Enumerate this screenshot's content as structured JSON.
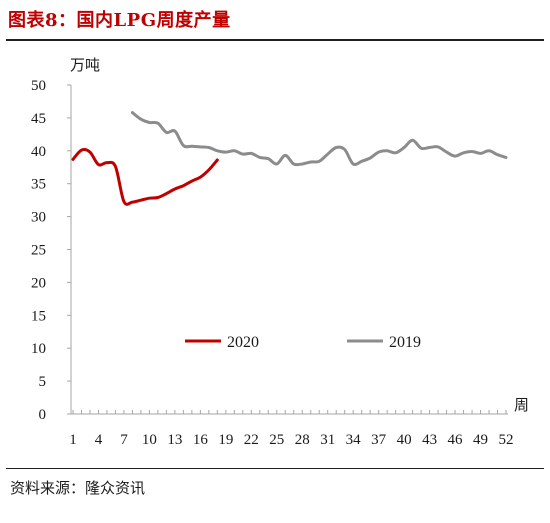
{
  "figure": {
    "title": "图表8：国内LPG周度产量",
    "source": "资料来源：隆众资讯"
  },
  "chart_data": {
    "type": "line",
    "ylabel": "万吨",
    "xlabel": "周",
    "ylim": [
      0,
      50
    ],
    "yticks": [
      0,
      5,
      10,
      15,
      20,
      25,
      30,
      35,
      40,
      45,
      50
    ],
    "xlim": [
      1,
      52
    ],
    "xticks": [
      1,
      4,
      7,
      10,
      13,
      16,
      19,
      22,
      25,
      28,
      31,
      34,
      37,
      40,
      43,
      46,
      49,
      52
    ],
    "legend_position": "inside-center",
    "grid": false,
    "series": [
      {
        "name": "2020",
        "color": "#c00000",
        "x": [
          1,
          2,
          3,
          4,
          5,
          6,
          7,
          8,
          9,
          10,
          11,
          12,
          13,
          14,
          15,
          16,
          17,
          18
        ],
        "values": [
          38.7,
          40.1,
          39.8,
          37.9,
          38.2,
          37.6,
          32.3,
          32.2,
          32.5,
          32.8,
          32.9,
          33.5,
          34.2,
          34.7,
          35.4,
          36.0,
          37.1,
          38.6
        ]
      },
      {
        "name": "2019",
        "color": "#8c8c8c",
        "x": [
          8,
          9,
          10,
          11,
          12,
          13,
          14,
          15,
          16,
          17,
          18,
          19,
          20,
          21,
          22,
          23,
          24,
          25,
          26,
          27,
          28,
          29,
          30,
          31,
          32,
          33,
          34,
          35,
          36,
          37,
          38,
          39,
          40,
          41,
          42,
          43,
          44,
          45,
          46,
          47,
          48,
          49,
          50,
          51,
          52
        ],
        "values": [
          45.8,
          44.8,
          44.3,
          44.2,
          42.8,
          43.0,
          40.8,
          40.7,
          40.6,
          40.5,
          40.0,
          39.8,
          40.0,
          39.5,
          39.6,
          39.0,
          38.8,
          38.0,
          39.3,
          38.0,
          38.0,
          38.3,
          38.4,
          39.5,
          40.5,
          40.2,
          38.0,
          38.4,
          38.9,
          39.8,
          40.0,
          39.7,
          40.5,
          41.6,
          40.4,
          40.5,
          40.6,
          39.8,
          39.2,
          39.7,
          39.9,
          39.6,
          40.0,
          39.4,
          39.0
        ]
      }
    ]
  }
}
